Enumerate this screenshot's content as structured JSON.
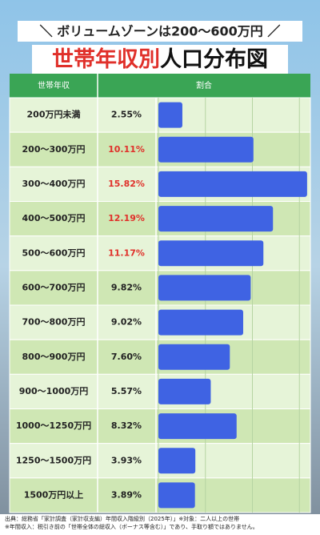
{
  "chart_data": {
    "type": "bar",
    "headline": "＼ ボリュームゾーンは200〜600万円 ／",
    "title_highlight": "世帯年収別",
    "title_rest": "人口分布図",
    "column_headers": [
      "世帯年収",
      "割合"
    ],
    "categories": [
      "200万円未満",
      "200〜300万円",
      "300〜400万円",
      "400〜500万円",
      "500〜600万円",
      "600〜700万円",
      "700〜800万円",
      "800〜900万円",
      "900〜1000万円",
      "1000〜1250万円",
      "1250〜1500万円",
      "1500万円以上"
    ],
    "values": [
      2.55,
      10.11,
      15.82,
      12.19,
      11.17,
      9.82,
      9.02,
      7.6,
      5.57,
      8.32,
      3.93,
      3.89
    ],
    "value_labels": [
      "2.55%",
      "10.11%",
      "15.82%",
      "12.19%",
      "11.17%",
      "9.82%",
      "9.02%",
      "7.60%",
      "5.57%",
      "8.32%",
      "3.93%",
      "3.89%"
    ],
    "value_label_colors": [
      "#222",
      "#e0302a",
      "#e0302a",
      "#e0302a",
      "#e0302a",
      "#222",
      "#222",
      "#222",
      "#222",
      "#222",
      "#222",
      "#222"
    ],
    "color": "#3f63e3",
    "xlim": [
      0,
      16
    ],
    "xticks": [
      0,
      5,
      10,
      15
    ],
    "grid": true,
    "notes": [
      "出典：総務省「家計調査（家計収支編）年間収入階級別（2025年）」※対象：二人以上の世帯",
      "※年間収入：税引き前の「世帯全体の総収入（ボーナス等含む）」であり、手取り額ではありません。"
    ]
  }
}
